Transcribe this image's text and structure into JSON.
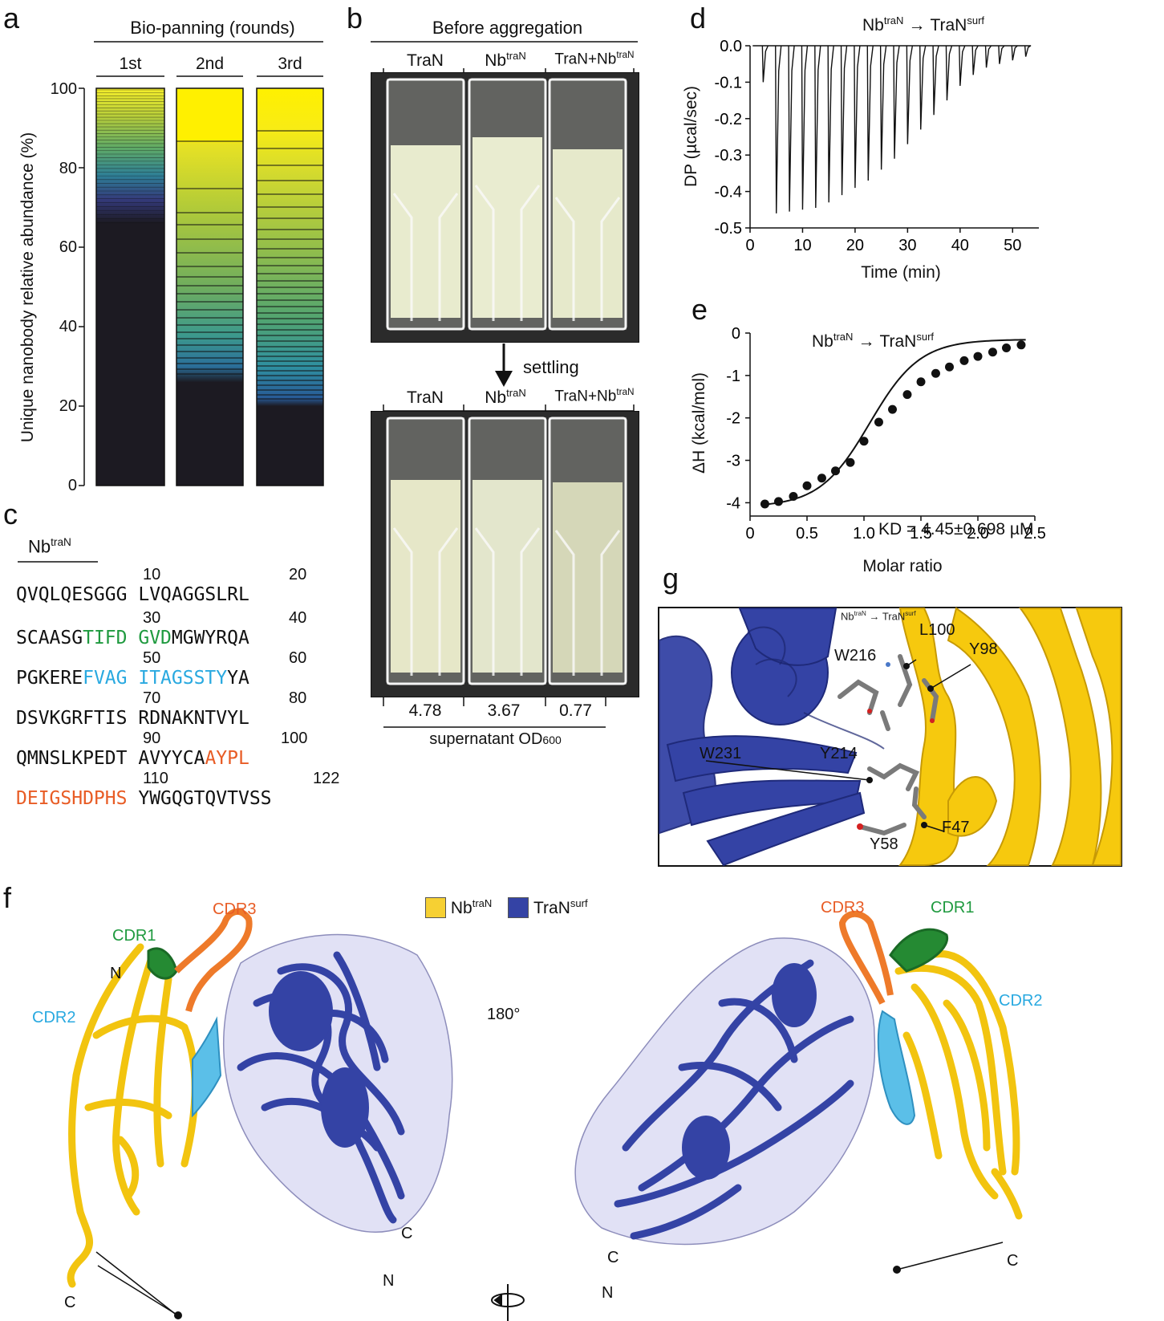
{
  "panels": {
    "a": "a",
    "b": "b",
    "c": "c",
    "d": "d",
    "e": "e",
    "f": "f",
    "g": "g"
  },
  "a": {
    "header": "Bio-panning (rounds)",
    "rounds": [
      "1st",
      "2nd",
      "3rd"
    ],
    "ylabel": "Unique nanobody relative abundance (%)",
    "yticks": [
      "0",
      "20",
      "40",
      "60",
      "80",
      "100"
    ]
  },
  "b": {
    "header": "Before aggregation",
    "lbl_tran": "TraN",
    "lbl_nb": "Nb",
    "lbl_sup": "traN",
    "lbl_mix": "TraN+Nb",
    "settling": "settling",
    "od_values": [
      "4.78",
      "3.67",
      "0.77"
    ],
    "od_label": "supernatant OD",
    "od_sub": "600"
  },
  "c": {
    "nb": "Nb",
    "nb_sup": "traN",
    "rows": [
      {
        "n1": "10",
        "n2": "20"
      },
      {
        "n1": "30",
        "n2": "40"
      },
      {
        "n1": "50",
        "n2": "60"
      },
      {
        "n1": "70",
        "n2": "80"
      },
      {
        "n1": "90",
        "n2": "100"
      },
      {
        "n1": "110",
        "n2": "122"
      }
    ],
    "seq": {
      "r1a": "QVQLQESGGG",
      "r1b": "LVQAGGSLRL",
      "r2a": "SCAASG",
      "r2b": "TIFD",
      "r2c": "GVD",
      "r2d": "MGWYRQA",
      "r3a": "PGKERE",
      "r3b": "FVAG",
      "r3c": "ITAGSSTY",
      "r3d": "YA",
      "r4a": "DSVKGRFTIS",
      "r4b": "RDNAKNTVYL",
      "r5a": "QMNSLKPEDT",
      "r5b": "AVYYCA",
      "r5c": "AYPL",
      "r6a": "DEIGSHDPHS",
      "r6b": "YWGQGTQVTVSS"
    },
    "colors": {
      "cdr1": "#1f9a3f",
      "cdr2": "#29a9e0",
      "cdr3": "#e85c25"
    }
  },
  "d": {
    "title_nb": "Nb",
    "title_sup": "traN",
    "arrow": "→",
    "title_tran": "TraN",
    "title_sup2": "surf",
    "ylabel": "DP (µcal/sec)",
    "xlabel": "Time (min)",
    "yticks": [
      "0.0",
      "-0.1",
      "-0.2",
      "-0.3",
      "-0.4",
      "-0.5"
    ],
    "xticks": [
      "0",
      "10",
      "20",
      "30",
      "40",
      "50"
    ]
  },
  "e": {
    "title_nb": "Nb",
    "title_sup": "traN",
    "arrow": "→",
    "title_tran": "TraN",
    "title_sup2": "surf",
    "ylabel": "ΔH (kcal/mol)",
    "xlabel": "Molar ratio",
    "yticks": [
      "0",
      "-1",
      "-2",
      "-3",
      "-4"
    ],
    "xticks": [
      "0",
      "0.5",
      "1.0",
      "1.5",
      "2.0",
      "2.5"
    ],
    "kd": "KD = 4.45±0.698 µM"
  },
  "chart_data": [
    {
      "type": "line",
      "title": "",
      "xlabel": "Time (min)",
      "ylabel": "DP (µcal/sec)",
      "xlim": [
        0,
        55
      ],
      "ylim": [
        -0.5,
        0.0
      ],
      "series": [
        {
          "x": [
            2.5,
            5,
            7.5,
            10,
            12.5,
            15,
            17.5,
            20,
            22.5,
            25,
            27.5,
            30,
            32.5,
            35,
            37.5,
            40,
            42.5,
            45,
            47.5,
            50,
            52.5
          ],
          "values": [
            -0.1,
            -0.46,
            -0.455,
            -0.45,
            -0.445,
            -0.43,
            -0.41,
            -0.39,
            -0.37,
            -0.34,
            -0.31,
            -0.27,
            -0.23,
            -0.19,
            -0.15,
            -0.11,
            -0.08,
            -0.06,
            -0.05,
            -0.04,
            -0.03
          ]
        }
      ]
    },
    {
      "type": "scatter",
      "title": "",
      "xlabel": "Molar ratio",
      "ylabel": "ΔH (kcal/mol)",
      "xlim": [
        0,
        2.5
      ],
      "ylim": [
        -4.2,
        0
      ],
      "series": [
        {
          "x": [
            0.13,
            0.25,
            0.38,
            0.5,
            0.63,
            0.75,
            0.88,
            1.0,
            1.13,
            1.25,
            1.38,
            1.5,
            1.63,
            1.75,
            1.88,
            2.0,
            2.13,
            2.25,
            2.38
          ],
          "values": [
            -4.03,
            -3.97,
            -3.85,
            -3.6,
            -3.42,
            -3.25,
            -3.05,
            -2.55,
            -2.1,
            -1.8,
            -1.45,
            -1.15,
            -0.95,
            -0.8,
            -0.65,
            -0.55,
            -0.45,
            -0.35,
            -0.28
          ]
        }
      ]
    }
  ],
  "f": {
    "legend_nb": "Nb",
    "legend_nb_sup": "traN",
    "legend_tran": "TraN",
    "legend_tran_sup": "surf",
    "legend_nb_color": "#f6d033",
    "legend_tran_color": "#3443a5",
    "cdr1": "CDR1",
    "cdr2": "CDR2",
    "cdr3": "CDR3",
    "rot": "180°",
    "n": "N",
    "c": "C"
  },
  "g": {
    "title_nb": "Nb",
    "title_sup": "traN",
    "title_tran": "TraN",
    "title_sup2": "surf",
    "residues": [
      "W216",
      "L100",
      "Y98",
      "W231",
      "Y214",
      "F47",
      "Y58"
    ]
  }
}
